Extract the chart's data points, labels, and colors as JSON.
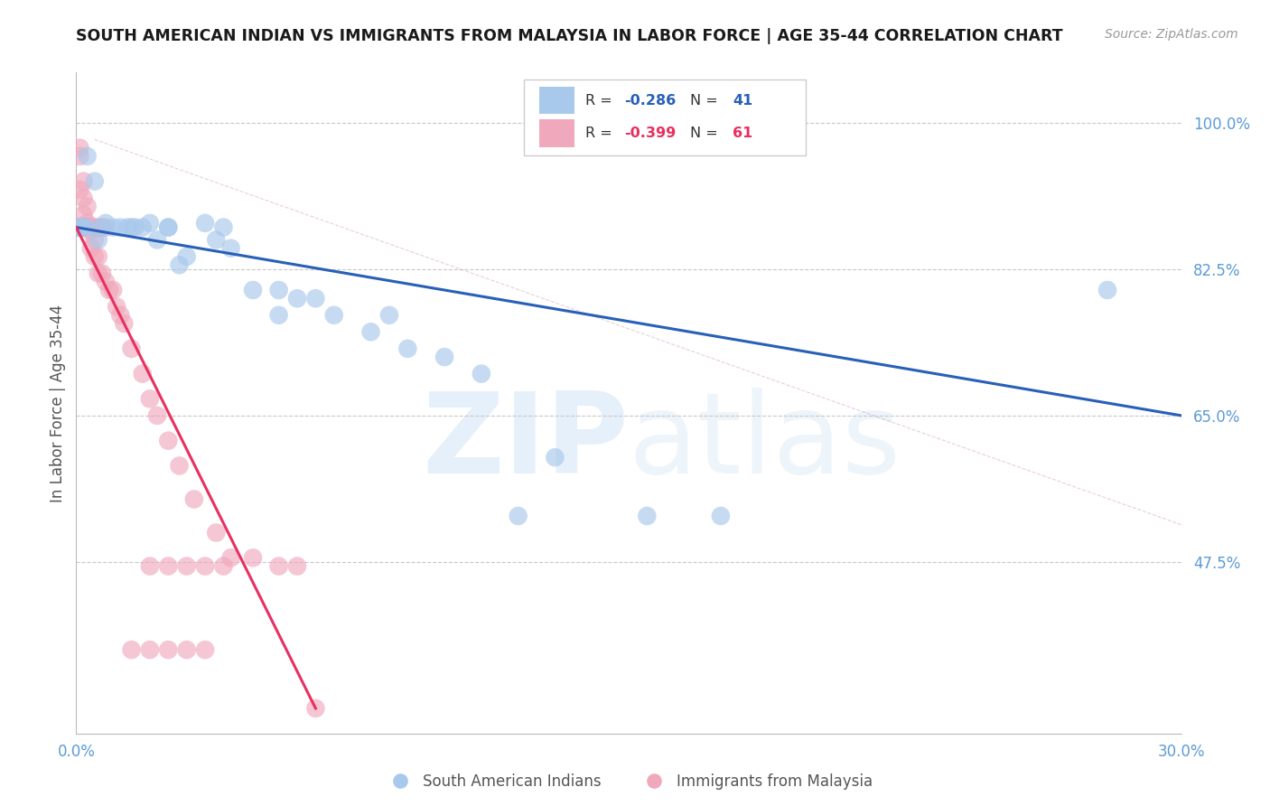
{
  "title": "SOUTH AMERICAN INDIAN VS IMMIGRANTS FROM MALAYSIA IN LABOR FORCE | AGE 35-44 CORRELATION CHART",
  "source": "Source: ZipAtlas.com",
  "ylabel": "In Labor Force | Age 35-44",
  "xlim": [
    0.0,
    0.3
  ],
  "ylim": [
    0.27,
    1.06
  ],
  "yticks": [
    0.475,
    0.65,
    0.825,
    1.0
  ],
  "ytick_labels": [
    "47.5%",
    "65.0%",
    "82.5%",
    "100.0%"
  ],
  "xtick_labels_show": [
    "0.0%",
    "30.0%"
  ],
  "xtick_pos_show": [
    0.0,
    0.3
  ],
  "blue_label": "South American Indians",
  "pink_label": "Immigrants from Malaysia",
  "blue_R": "-0.286",
  "blue_N": "41",
  "pink_R": "-0.399",
  "pink_N": "61",
  "blue_color": "#A8C8EC",
  "pink_color": "#F0A8BC",
  "blue_line_color": "#2860B8",
  "pink_line_color": "#E83060",
  "axis_color": "#5B9BD5",
  "watermark_zip": "ZIP",
  "watermark_atlas": "atlas",
  "blue_line": [
    0.0,
    0.875,
    0.3,
    0.65
  ],
  "pink_line": [
    0.0,
    0.875,
    0.065,
    0.3
  ],
  "diag_line": [
    0.005,
    0.98,
    0.46,
    0.27
  ],
  "blue_scatter_x": [
    0.001,
    0.002,
    0.003,
    0.005,
    0.006,
    0.008,
    0.01,
    0.012,
    0.014,
    0.016,
    0.018,
    0.02,
    0.022,
    0.025,
    0.028,
    0.03,
    0.035,
    0.038,
    0.042,
    0.048,
    0.055,
    0.06,
    0.065,
    0.07,
    0.08,
    0.09,
    0.1,
    0.11,
    0.13,
    0.155,
    0.175,
    0.001,
    0.003,
    0.007,
    0.015,
    0.025,
    0.04,
    0.055,
    0.085,
    0.12,
    0.28
  ],
  "blue_scatter_y": [
    0.875,
    0.875,
    0.96,
    0.93,
    0.86,
    0.88,
    0.875,
    0.875,
    0.875,
    0.875,
    0.875,
    0.88,
    0.86,
    0.875,
    0.83,
    0.84,
    0.88,
    0.86,
    0.85,
    0.8,
    0.8,
    0.79,
    0.79,
    0.77,
    0.75,
    0.73,
    0.72,
    0.7,
    0.6,
    0.53,
    0.53,
    0.875,
    0.875,
    0.875,
    0.875,
    0.875,
    0.875,
    0.77,
    0.77,
    0.53,
    0.8
  ],
  "pink_scatter_x": [
    0.001,
    0.001,
    0.001,
    0.001,
    0.001,
    0.001,
    0.001,
    0.001,
    0.002,
    0.002,
    0.002,
    0.002,
    0.002,
    0.002,
    0.003,
    0.003,
    0.003,
    0.003,
    0.003,
    0.004,
    0.004,
    0.004,
    0.004,
    0.005,
    0.005,
    0.005,
    0.006,
    0.006,
    0.006,
    0.007,
    0.007,
    0.008,
    0.008,
    0.009,
    0.01,
    0.011,
    0.012,
    0.013,
    0.015,
    0.018,
    0.02,
    0.022,
    0.025,
    0.028,
    0.032,
    0.038,
    0.042,
    0.048,
    0.055,
    0.06,
    0.065,
    0.02,
    0.025,
    0.03,
    0.035,
    0.04,
    0.015,
    0.02,
    0.025,
    0.03,
    0.035
  ],
  "pink_scatter_y": [
    0.875,
    0.875,
    0.875,
    0.875,
    0.875,
    0.96,
    0.97,
    0.92,
    0.875,
    0.875,
    0.875,
    0.93,
    0.91,
    0.89,
    0.875,
    0.875,
    0.875,
    0.9,
    0.88,
    0.875,
    0.875,
    0.87,
    0.85,
    0.875,
    0.86,
    0.84,
    0.875,
    0.84,
    0.82,
    0.875,
    0.82,
    0.875,
    0.81,
    0.8,
    0.8,
    0.78,
    0.77,
    0.76,
    0.73,
    0.7,
    0.67,
    0.65,
    0.62,
    0.59,
    0.55,
    0.51,
    0.48,
    0.48,
    0.47,
    0.47,
    0.3,
    0.47,
    0.47,
    0.47,
    0.47,
    0.47,
    0.37,
    0.37,
    0.37,
    0.37,
    0.37
  ]
}
